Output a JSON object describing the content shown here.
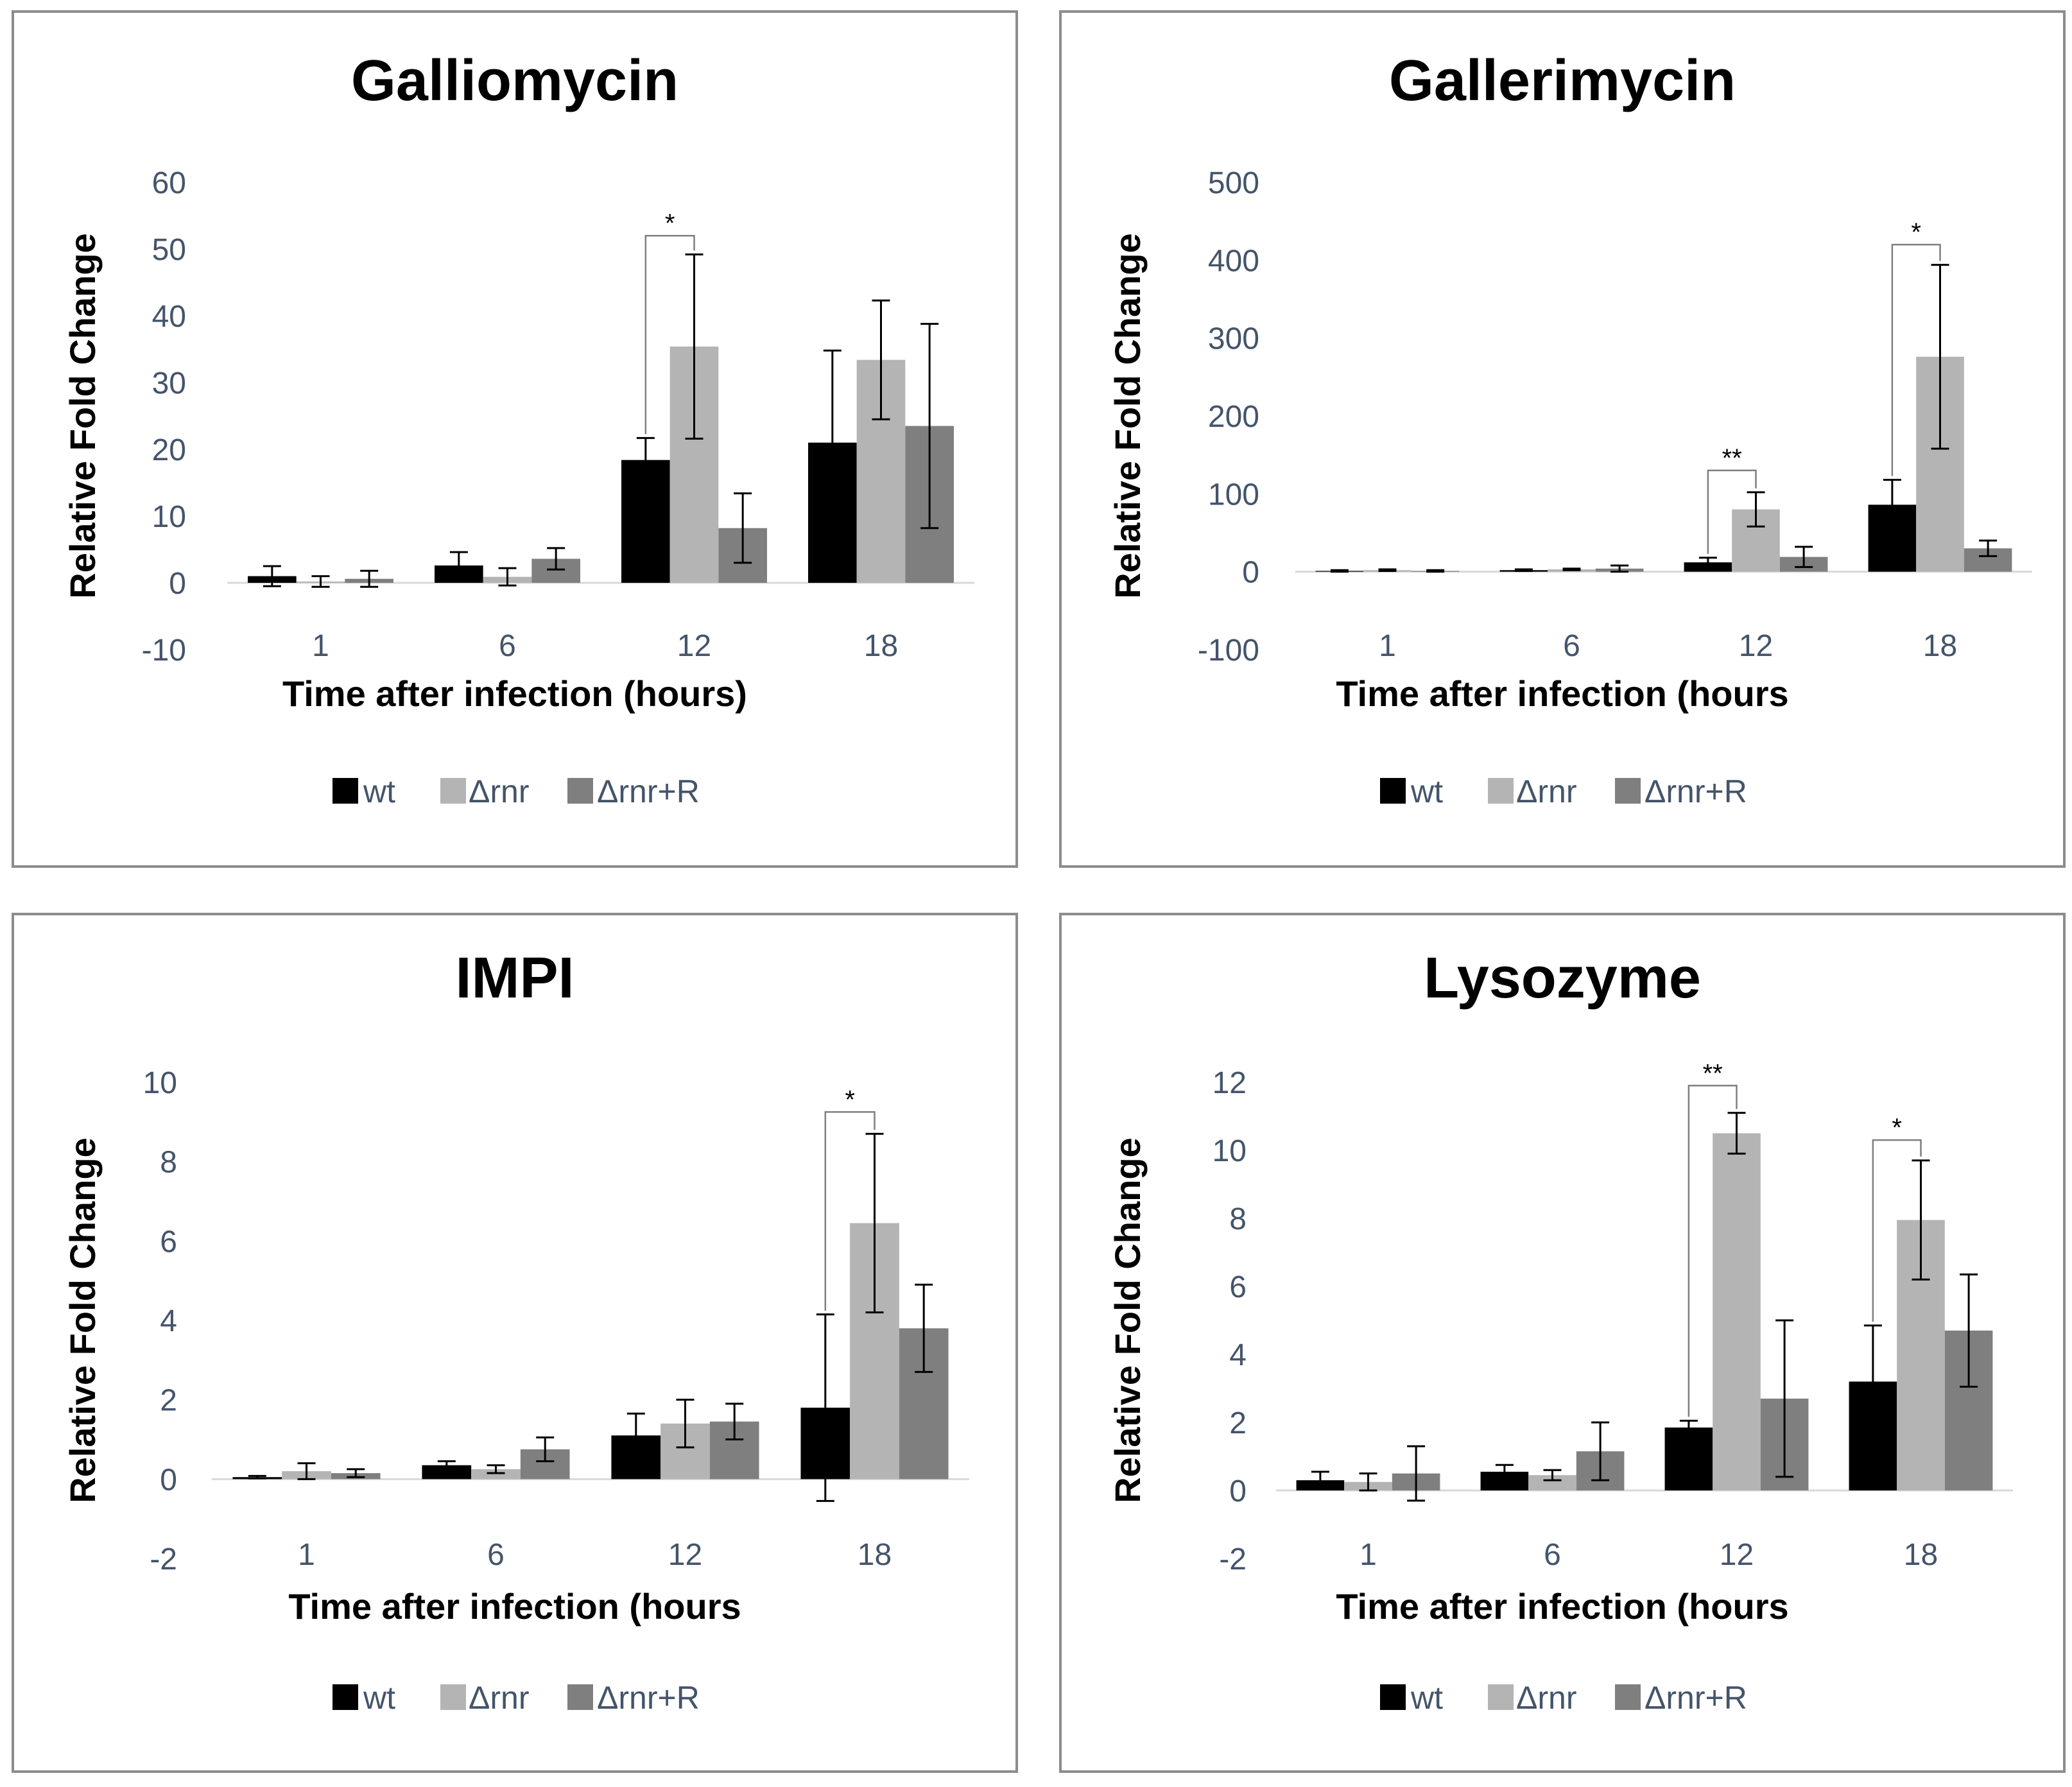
{
  "legend": {
    "labels": [
      "wt",
      "Δrnr",
      "Δrnr+R"
    ]
  },
  "colors": {
    "series": [
      "#000000",
      "#b4b4b4",
      "#7f7f7f"
    ],
    "axis_text": "#44546a",
    "frame": "#8c8c8c",
    "grid_line": "#d9d9d9",
    "bracket": "#7f7f7f"
  },
  "chart_data": [
    {
      "type": "bar",
      "title": "Galliomycin",
      "xlabel": "Time after infection (hours)",
      "ylabel": "Relative Fold Change",
      "categories": [
        "1",
        "6",
        "12",
        "18"
      ],
      "ylim": [
        -10,
        60
      ],
      "yticks": [
        -10,
        0,
        10,
        20,
        30,
        40,
        50,
        60
      ],
      "series": [
        {
          "name": "wt",
          "values": [
            1.0,
            2.6,
            18.4,
            21.0
          ],
          "errors": [
            1.5,
            2.0,
            3.3,
            13.8
          ]
        },
        {
          "name": "Δrnr",
          "values": [
            0.2,
            0.9,
            35.4,
            33.4
          ],
          "errors": [
            0.8,
            1.3,
            13.8,
            8.9
          ]
        },
        {
          "name": "Δrnr+R",
          "values": [
            0.6,
            3.6,
            8.2,
            23.5
          ],
          "errors": [
            1.2,
            1.6,
            5.2,
            15.3
          ]
        }
      ],
      "annotations": [
        {
          "text": "*",
          "category": "12",
          "from": 0,
          "to": 1,
          "level": 52
        }
      ]
    },
    {
      "type": "bar",
      "title": "Gallerimycin",
      "xlabel": "Time after infection (hours",
      "ylabel": "Relative Fold Change",
      "categories": [
        "1",
        "6",
        "12",
        "18"
      ],
      "ylim": [
        -100,
        500
      ],
      "yticks": [
        -100,
        0,
        100,
        200,
        300,
        400,
        500
      ],
      "series": [
        {
          "name": "wt",
          "values": [
            1,
            2,
            12,
            86
          ],
          "errors": [
            1,
            1,
            6,
            32
          ]
        },
        {
          "name": "Δrnr",
          "values": [
            2,
            3,
            80,
            276
          ],
          "errors": [
            1,
            1,
            22,
            118
          ]
        },
        {
          "name": "Δrnr+R",
          "values": [
            1,
            4,
            19,
            30
          ],
          "errors": [
            1,
            4,
            13,
            10
          ]
        }
      ],
      "annotations": [
        {
          "text": "**",
          "category": "12",
          "from": 0,
          "to": 1,
          "level": 130
        },
        {
          "text": "*",
          "category": "18",
          "from": 0,
          "to": 1,
          "level": 420
        }
      ]
    },
    {
      "type": "bar",
      "title": "IMPI",
      "xlabel": "Time after infection (hours",
      "ylabel": "Relative Fold Change",
      "categories": [
        "1",
        "6",
        "12",
        "18"
      ],
      "ylim": [
        -2,
        10
      ],
      "yticks": [
        -2,
        0,
        2,
        4,
        6,
        8,
        10
      ],
      "series": [
        {
          "name": "wt",
          "values": [
            0.05,
            0.35,
            1.1,
            1.8
          ],
          "errors": [
            0.03,
            0.1,
            0.55,
            2.35
          ]
        },
        {
          "name": "Δrnr",
          "values": [
            0.2,
            0.25,
            1.4,
            6.45
          ],
          "errors": [
            0.2,
            0.1,
            0.6,
            2.25
          ]
        },
        {
          "name": "Δrnr+R",
          "values": [
            0.15,
            0.75,
            1.45,
            3.8
          ],
          "errors": [
            0.1,
            0.3,
            0.45,
            1.1
          ]
        }
      ],
      "annotations": [
        {
          "text": "*",
          "category": "18",
          "from": 0,
          "to": 1,
          "level": 9.25
        }
      ]
    },
    {
      "type": "bar",
      "title": "Lysozyme",
      "xlabel": "Time after infection (hours",
      "ylabel": "Relative Fold Change",
      "categories": [
        "1",
        "6",
        "12",
        "18"
      ],
      "ylim": [
        -2,
        12
      ],
      "yticks": [
        -2,
        0,
        2,
        4,
        6,
        8,
        10,
        12
      ],
      "series": [
        {
          "name": "wt",
          "values": [
            0.3,
            0.55,
            1.85,
            3.2
          ],
          "errors": [
            0.25,
            0.2,
            0.2,
            1.65
          ]
        },
        {
          "name": "Δrnr",
          "values": [
            0.25,
            0.45,
            10.5,
            7.95
          ],
          "errors": [
            0.25,
            0.15,
            0.6,
            1.75
          ]
        },
        {
          "name": "Δrnr+R",
          "values": [
            0.5,
            1.15,
            2.7,
            4.7
          ],
          "errors": [
            0.8,
            0.85,
            2.3,
            1.65
          ]
        }
      ],
      "annotations": [
        {
          "text": "**",
          "category": "12",
          "from": 0,
          "to": 1,
          "level": 11.9
        },
        {
          "text": "*",
          "category": "18",
          "from": 0,
          "to": 1,
          "level": 10.3
        }
      ]
    }
  ]
}
